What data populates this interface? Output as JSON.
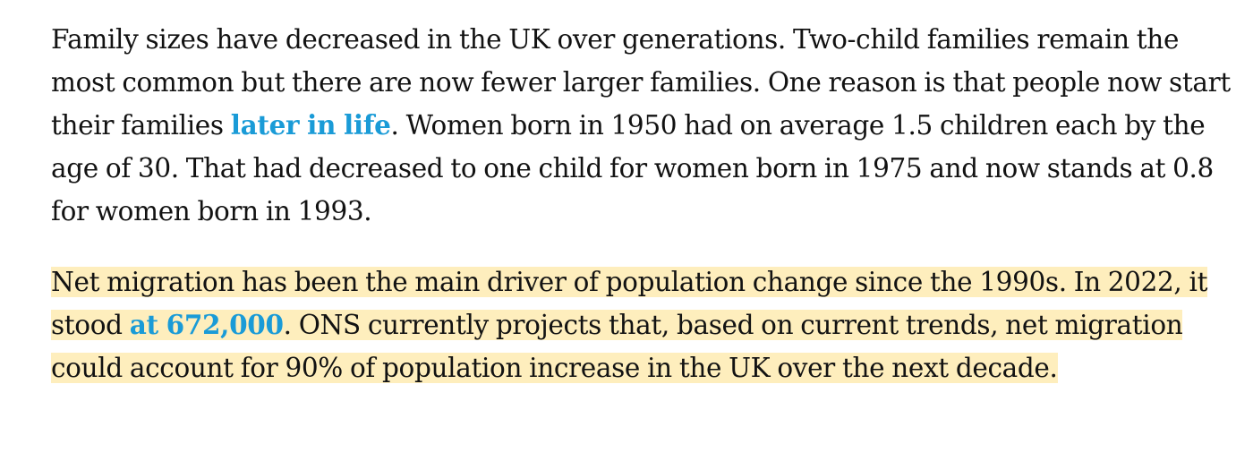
{
  "article": {
    "paragraph1": {
      "before_link": "Family sizes have decreased in the UK over generations. Two-child families remain the most common but there are now fewer larger families. One reason is that people now start their families ",
      "link_text": "later in life",
      "after_link": ". Women born in 1950 had on average 1.5 children each by the age of 30. That had decreased to one child for women born in 1975 and now stands at 0.8 for women born in 1993."
    },
    "paragraph2": {
      "before_link": "Net migration has been the main driver of population change since the 1990s. In 2022, it stood ",
      "link_text": "at 672,000",
      "after_link": ". ONS currently projects that, based on current trends, net migration could account for 90% of population increase in the UK over the next decade."
    },
    "colors": {
      "text": "#121212",
      "link": "#1a9bd7",
      "highlight": "#feeebd"
    }
  }
}
